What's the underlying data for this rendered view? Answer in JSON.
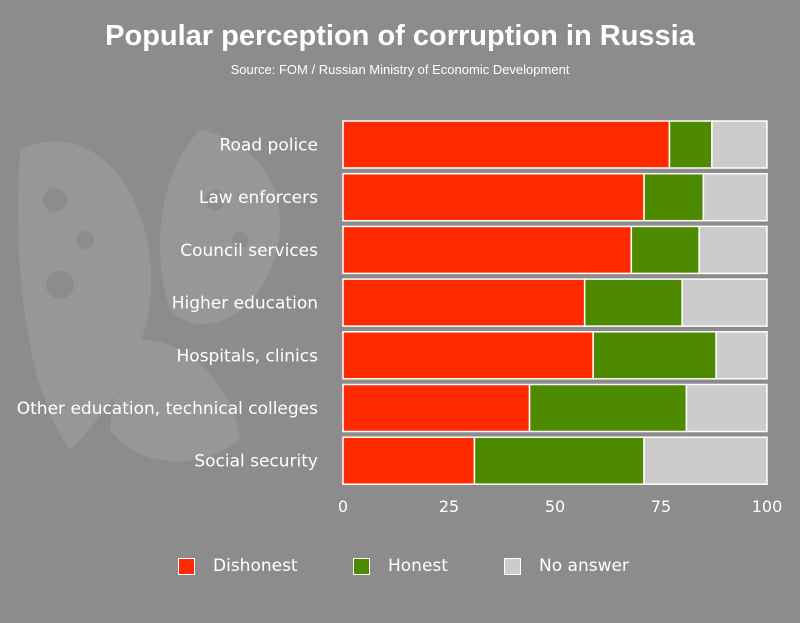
{
  "title": "Popular perception of corruption in Russia",
  "subtitle": "Source: FOM / Russian Ministry of Economic Development",
  "colors": {
    "background": "#8c8c8c",
    "dishonest": "#ff2a00",
    "honest": "#4e8a00",
    "no_answer": "#cccccc",
    "bar_border": "#ffffff"
  },
  "legend": [
    {
      "label": "Dishonest",
      "color": "#ff2a00"
    },
    {
      "label": "Honest",
      "color": "#4e8a00"
    },
    {
      "label": "No answer",
      "color": "#cccccc"
    }
  ],
  "chart_data": {
    "type": "bar",
    "orientation": "horizontal",
    "stacked": true,
    "title": "Popular perception of corruption in Russia",
    "subtitle": "Source: FOM / Russian Ministry of Economic Development",
    "categories": [
      "Road police",
      "Law enforcers",
      "Council services",
      "Higher education",
      "Hospitals, clinics",
      "Other education, technical colleges",
      "Social security"
    ],
    "series": [
      {
        "name": "Dishonest",
        "values": [
          77,
          71,
          68,
          57,
          59,
          44,
          31
        ]
      },
      {
        "name": "Honest",
        "values": [
          10,
          14,
          16,
          23,
          29,
          37,
          40
        ]
      },
      {
        "name": "No answer",
        "values": [
          13,
          15,
          16,
          20,
          12,
          19,
          29
        ]
      }
    ],
    "xlim": [
      0,
      100
    ],
    "xticks": [
      0,
      25,
      50,
      75,
      100
    ],
    "xlabel": "",
    "ylabel": "",
    "grid": false,
    "legend_position": "bottom"
  }
}
